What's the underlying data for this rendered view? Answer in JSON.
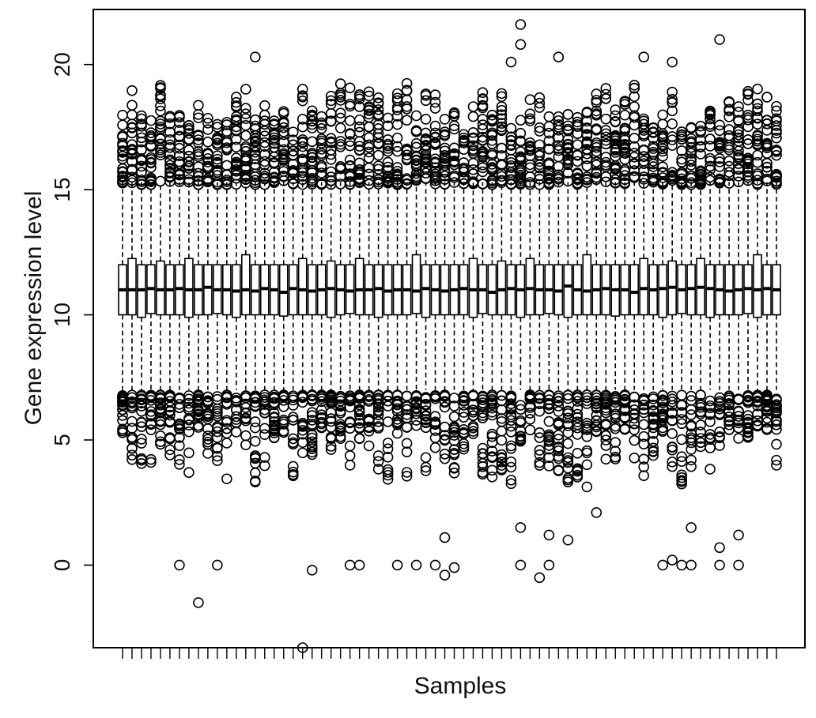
{
  "chart_data": {
    "type": "boxplot",
    "title": "",
    "xlabel": "Samples",
    "ylabel": "Gene expression level",
    "ylim": [
      -3.3,
      22.2
    ],
    "yticks": [
      0,
      5,
      10,
      15,
      20
    ],
    "sample_count": 70,
    "colors": {
      "box_fill": "#ffffff",
      "stroke": "#000000",
      "background": "#ffffff"
    },
    "grid": false,
    "legend": "none",
    "series": [
      {
        "median": [
          11.0,
          11.0,
          11.0,
          11.05,
          11.0,
          11.0,
          11.05,
          11.0,
          11.0,
          11.1,
          11.0,
          11.0,
          10.95,
          11.0,
          10.95,
          11.05,
          11.0,
          10.9,
          11.05,
          11.0,
          10.95,
          11.0,
          11.05,
          11.0,
          10.95,
          11.0,
          11.0,
          11.05,
          10.95,
          11.0,
          11.0,
          10.95,
          11.05,
          11.0,
          10.95,
          11.0,
          11.05,
          11.0,
          11.0,
          10.9,
          11.0,
          11.05,
          11.0,
          11.05,
          11.0,
          11.0,
          10.95,
          11.15,
          11.0,
          10.95,
          11.0,
          11.05,
          11.0,
          11.0,
          10.9,
          11.05,
          11.0,
          11.05,
          11.1,
          11.0,
          11.05,
          11.1,
          11.05,
          11.0,
          10.95,
          11.0,
          11.05,
          11.0,
          11.05,
          11.0
        ],
        "q1": 10.0,
        "q3": 12.0,
        "whisker_low": 7.0,
        "whisker_high": 15.3,
        "outliers": [
          {
            "sample": 6,
            "value": 0.0
          },
          {
            "sample": 8,
            "value": -1.5
          },
          {
            "sample": 10,
            "value": 0.0
          },
          {
            "sample": 19,
            "value": -3.3
          },
          {
            "sample": 20,
            "value": -0.2
          },
          {
            "sample": 24,
            "value": 0.0
          },
          {
            "sample": 25,
            "value": 0.0
          },
          {
            "sample": 29,
            "value": 0.0
          },
          {
            "sample": 31,
            "value": 0.0
          },
          {
            "sample": 33,
            "value": 0.0
          },
          {
            "sample": 34,
            "value": -0.4
          },
          {
            "sample": 34,
            "value": 1.1
          },
          {
            "sample": 35,
            "value": -0.1
          },
          {
            "sample": 42,
            "value": 0.0
          },
          {
            "sample": 42,
            "value": 1.5
          },
          {
            "sample": 44,
            "value": -0.5
          },
          {
            "sample": 45,
            "value": 0.0
          },
          {
            "sample": 45,
            "value": 1.2
          },
          {
            "sample": 47,
            "value": 1.0
          },
          {
            "sample": 50,
            "value": 2.1
          },
          {
            "sample": 57,
            "value": 0.0
          },
          {
            "sample": 58,
            "value": 0.2
          },
          {
            "sample": 59,
            "value": 0.0
          },
          {
            "sample": 60,
            "value": 0.0
          },
          {
            "sample": 60,
            "value": 1.5
          },
          {
            "sample": 63,
            "value": 0.0
          },
          {
            "sample": 63,
            "value": 0.7
          },
          {
            "sample": 65,
            "value": 0.0
          },
          {
            "sample": 65,
            "value": 1.2
          },
          {
            "sample": 42,
            "value": 21.6
          },
          {
            "sample": 42,
            "value": 20.8
          },
          {
            "sample": 41,
            "value": 20.1
          },
          {
            "sample": 63,
            "value": 21.0
          },
          {
            "sample": 14,
            "value": 20.3
          },
          {
            "sample": 46,
            "value": 20.3
          },
          {
            "sample": 55,
            "value": 20.3
          },
          {
            "sample": 58,
            "value": 20.1
          }
        ]
      }
    ]
  }
}
